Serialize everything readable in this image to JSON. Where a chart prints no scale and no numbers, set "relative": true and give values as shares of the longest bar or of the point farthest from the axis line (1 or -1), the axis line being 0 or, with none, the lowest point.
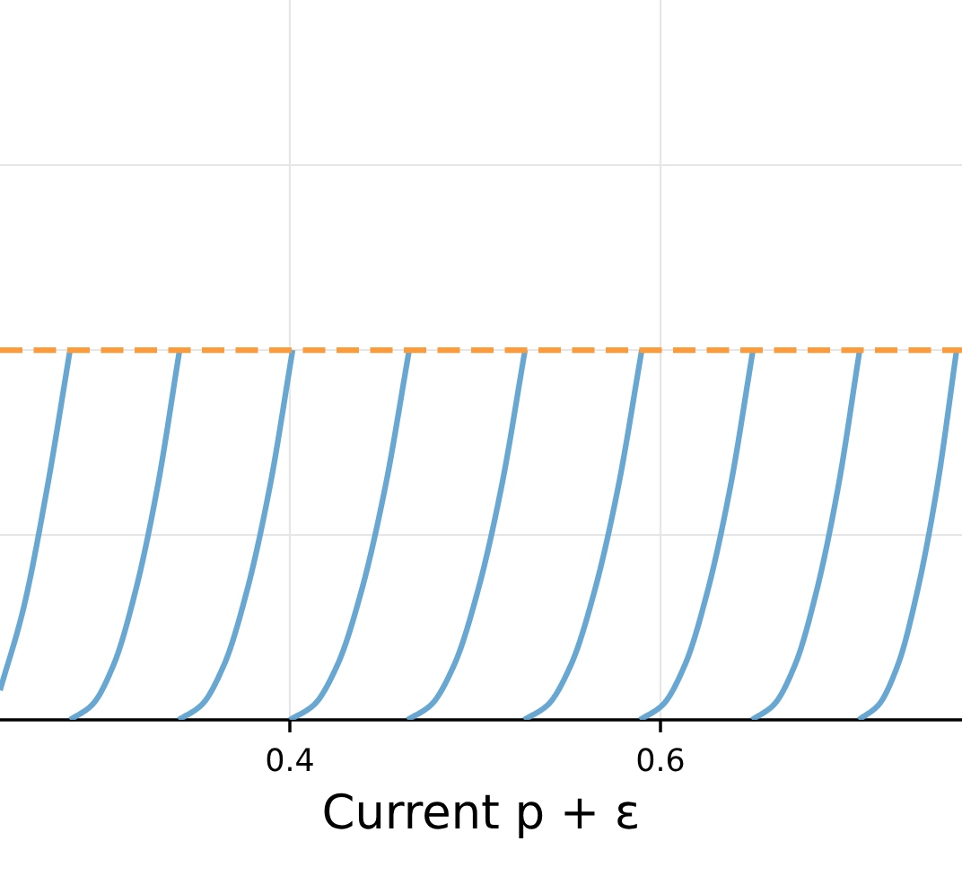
{
  "chart_data": {
    "type": "line",
    "xlabel": "Current p + ε",
    "relative": true,
    "xlim": [
      0.2436,
      0.7627
    ],
    "xticks": [
      0.4,
      0.6
    ],
    "tick_labels": "x",
    "grid": true,
    "line_style": "solid",
    "marker": "none",
    "series": [
      {
        "color": "#5fa2cf",
        "x": [
          0.2436,
          0.2562,
          0.2688,
          0.2814
        ],
        "values": [
          0.08,
          0.3,
          0.62,
          1
        ]
      },
      {
        "color": "#5fa2cf",
        "x": [
          0.2814,
          0.2932,
          0.305,
          0.3168,
          0.3286,
          0.3405
        ],
        "values": [
          0,
          0.04,
          0.15,
          0.35,
          0.63,
          1
        ]
      },
      {
        "color": "#5fa2cf",
        "x": [
          0.34,
          0.3523,
          0.3646,
          0.3769,
          0.3892,
          0.4015
        ],
        "values": [
          0,
          0.04,
          0.15,
          0.35,
          0.63,
          1
        ]
      },
      {
        "color": "#5fa2cf",
        "x": [
          0.4,
          0.4129,
          0.4258,
          0.4387,
          0.4515,
          0.4644
        ],
        "values": [
          0,
          0.04,
          0.15,
          0.35,
          0.63,
          1
        ]
      },
      {
        "color": "#5fa2cf",
        "x": [
          0.4635,
          0.4761,
          0.4888,
          0.5015,
          0.5142,
          0.5269
        ],
        "values": [
          0,
          0.04,
          0.15,
          0.35,
          0.63,
          1
        ]
      },
      {
        "color": "#5fa2cf",
        "x": [
          0.5264,
          0.5391,
          0.5518,
          0.5645,
          0.5772,
          0.5899
        ],
        "values": [
          0,
          0.04,
          0.15,
          0.35,
          0.63,
          1
        ]
      },
      {
        "color": "#5fa2cf",
        "x": [
          0.5889,
          0.6011,
          0.6133,
          0.6255,
          0.6377,
          0.6499
        ],
        "values": [
          0,
          0.04,
          0.15,
          0.35,
          0.63,
          1
        ]
      },
      {
        "color": "#5fa2cf",
        "x": [
          0.6494,
          0.661,
          0.6727,
          0.6843,
          0.6959,
          0.7075
        ],
        "values": [
          0,
          0.04,
          0.15,
          0.35,
          0.63,
          1
        ]
      },
      {
        "color": "#5fa2cf",
        "x": [
          0.707,
          0.7176,
          0.7282,
          0.7387,
          0.7493,
          0.7598
        ],
        "values": [
          0,
          0.04,
          0.15,
          0.35,
          0.63,
          1
        ]
      }
    ],
    "ref_lines": [
      {
        "axis": "y",
        "value": 1,
        "color": "#fd9a3a",
        "line_style": "dashed"
      }
    ]
  }
}
